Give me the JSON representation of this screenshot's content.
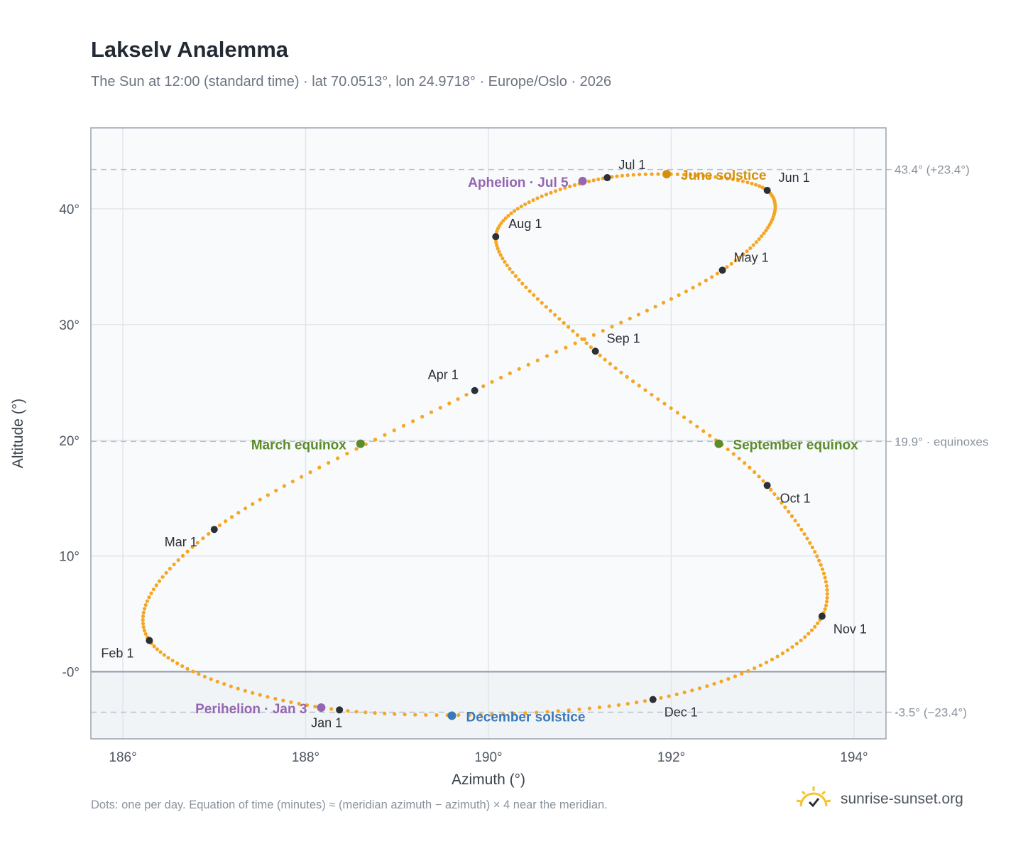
{
  "title": "Lakselv Analemma",
  "subtitle": "The Sun at 12:00 (standard time) · lat 70.0513°, lon 24.9718° · Europe/Oslo · 2026",
  "footnote": "Dots: one per day. Equation of time (minutes) ≈ (meridian azimuth − azimuth) × 4 near the meridian.",
  "brand": {
    "name": "sunrise-sunset.org",
    "icon": "sun-check-icon"
  },
  "colors": {
    "path": "#f5a623",
    "month_marker": "#2b2f36",
    "equinox": "#5b8c2a",
    "june_solstice": "#d4900a",
    "december_solstice": "#3a78b8",
    "apsides": "#9466b0",
    "plot_bg": "#f8fafc",
    "below_horizon_bg": "#f1f4f7"
  },
  "chart_data": {
    "type": "scatter",
    "xlabel": "Azimuth (°)",
    "ylabel": "Altitude (°)",
    "xlim": [
      185.65,
      194.35
    ],
    "ylim": [
      -5.8,
      47.0
    ],
    "xticks": [
      186,
      188,
      190,
      192,
      194
    ],
    "xtick_labels": [
      "186°",
      "188°",
      "190°",
      "192°",
      "194°"
    ],
    "yticks": [
      0,
      10,
      20,
      30,
      40
    ],
    "ytick_labels": [
      "-0°",
      "10°",
      "20°",
      "30°",
      "40°"
    ],
    "grid": true,
    "horizon_altitude": 0,
    "reference_lines": [
      {
        "y": 43.4,
        "label": "43.4° (+23.4°)"
      },
      {
        "y": 19.9,
        "label": "19.9° · equinoxes"
      },
      {
        "y": -3.5,
        "label": "-3.5° (−23.4°)"
      }
    ],
    "month_points": [
      {
        "label": "Jan 1",
        "x": 188.37,
        "y": -3.3
      },
      {
        "label": "Feb 1",
        "x": 186.29,
        "y": 2.7
      },
      {
        "label": "Mar 1",
        "x": 187.0,
        "y": 12.3
      },
      {
        "label": "Apr 1",
        "x": 189.85,
        "y": 24.3
      },
      {
        "label": "May 1",
        "x": 192.56,
        "y": 34.7
      },
      {
        "label": "Jun 1",
        "x": 193.05,
        "y": 41.6
      },
      {
        "label": "Jul 1",
        "x": 191.3,
        "y": 42.7
      },
      {
        "label": "Aug 1",
        "x": 190.08,
        "y": 37.6
      },
      {
        "label": "Sep 1",
        "x": 191.17,
        "y": 27.7
      },
      {
        "label": "Oct 1",
        "x": 193.05,
        "y": 16.1
      },
      {
        "label": "Nov 1",
        "x": 193.65,
        "y": 4.8
      },
      {
        "label": "Dec 1",
        "x": 191.8,
        "y": -2.4
      }
    ],
    "events": [
      {
        "label": "March equinox",
        "x": 188.6,
        "y": 19.7,
        "kind": "equinox"
      },
      {
        "label": "June solstice",
        "x": 191.95,
        "y": 43.0,
        "kind": "june_solstice"
      },
      {
        "label": "Aphelion · Jul 5",
        "x": 191.03,
        "y": 42.4,
        "kind": "apsides"
      },
      {
        "label": "September equinox",
        "x": 192.52,
        "y": 19.7,
        "kind": "equinox"
      },
      {
        "label": "December solstice",
        "x": 189.6,
        "y": -3.8,
        "kind": "december_solstice"
      },
      {
        "label": "Perihelion · Jan 3",
        "x": 188.17,
        "y": -3.1,
        "kind": "apsides"
      }
    ]
  }
}
